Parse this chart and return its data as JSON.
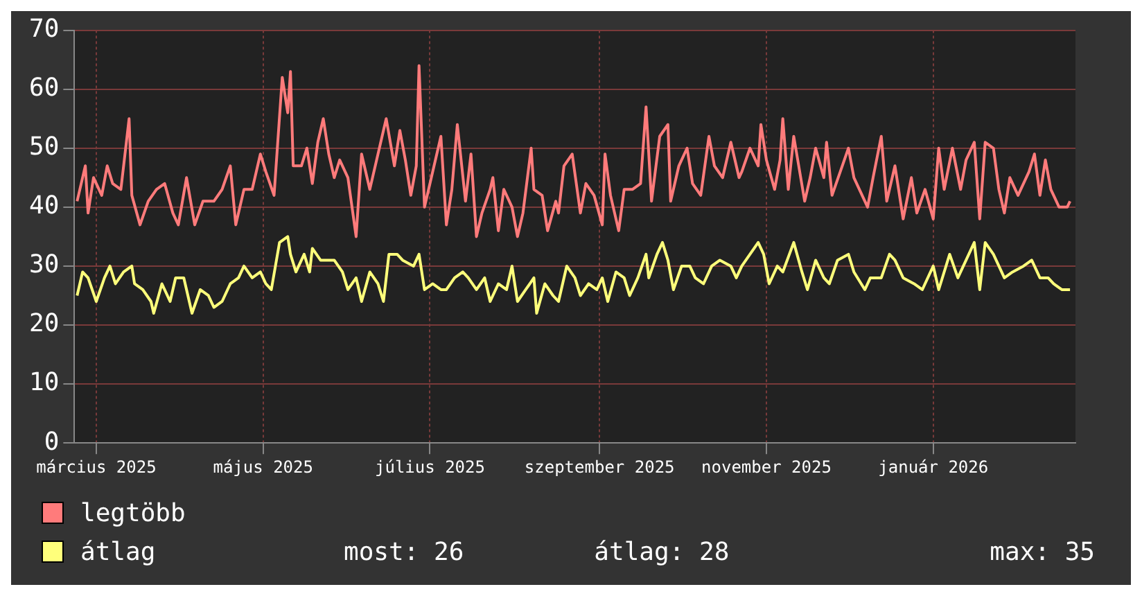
{
  "chart_data": {
    "type": "line",
    "xlim": [
      "2025-02-21",
      "2026-02-22"
    ],
    "xticks": [
      {
        "value": "2025-03-01",
        "label": "március 2025"
      },
      {
        "value": "2025-05-01",
        "label": "május 2025"
      },
      {
        "value": "2025-07-01",
        "label": "július 2025"
      },
      {
        "value": "2025-09-01",
        "label": "szeptember 2025"
      },
      {
        "value": "2025-11-01",
        "label": "november 2025"
      },
      {
        "value": "2026-01-01",
        "label": "január 2026"
      }
    ],
    "ylim": [
      0,
      70
    ],
    "yticks": [
      0,
      10,
      20,
      30,
      40,
      50,
      60,
      70
    ],
    "grid": true,
    "legend": "bottom left",
    "annotations": [
      "most: 26",
      "átlag: 28",
      "max: 35"
    ],
    "series": [
      {
        "name": "legtöbb",
        "color": "#ff7b7b",
        "x": [
          "2025-02-22",
          "2025-02-25",
          "2025-02-26",
          "2025-02-28",
          "2025-03-03",
          "2025-03-05",
          "2025-03-07",
          "2025-03-10",
          "2025-03-13",
          "2025-03-14",
          "2025-03-17",
          "2025-03-20",
          "2025-03-23",
          "2025-03-26",
          "2025-03-29",
          "2025-03-31",
          "2025-04-03",
          "2025-04-06",
          "2025-04-09",
          "2025-04-13",
          "2025-04-16",
          "2025-04-19",
          "2025-04-21",
          "2025-04-24",
          "2025-04-27",
          "2025-04-30",
          "2025-05-02",
          "2025-05-05",
          "2025-05-08",
          "2025-05-10",
          "2025-05-11",
          "2025-05-12",
          "2025-05-15",
          "2025-05-17",
          "2025-05-19",
          "2025-05-21",
          "2025-05-23",
          "2025-05-25",
          "2025-05-27",
          "2025-05-29",
          "2025-06-01",
          "2025-06-04",
          "2025-06-06",
          "2025-06-09",
          "2025-06-13",
          "2025-06-15",
          "2025-06-18",
          "2025-06-20",
          "2025-06-22",
          "2025-06-24",
          "2025-06-26",
          "2025-06-27",
          "2025-06-29",
          "2025-07-02",
          "2025-07-05",
          "2025-07-07",
          "2025-07-09",
          "2025-07-11",
          "2025-07-14",
          "2025-07-16",
          "2025-07-18",
          "2025-07-20",
          "2025-07-23",
          "2025-07-24",
          "2025-07-26",
          "2025-07-28",
          "2025-07-31",
          "2025-08-02",
          "2025-08-04",
          "2025-08-07",
          "2025-08-08",
          "2025-08-11",
          "2025-08-13",
          "2025-08-16",
          "2025-08-17",
          "2025-08-19",
          "2025-08-22",
          "2025-08-25",
          "2025-08-27",
          "2025-08-30",
          "2025-09-02",
          "2025-09-03",
          "2025-09-05",
          "2025-09-08",
          "2025-09-10",
          "2025-09-13",
          "2025-09-16",
          "2025-09-18",
          "2025-09-20",
          "2025-09-23",
          "2025-09-26",
          "2025-09-27",
          "2025-09-30",
          "2025-10-03",
          "2025-10-05",
          "2025-10-08",
          "2025-10-11",
          "2025-10-13",
          "2025-10-16",
          "2025-10-19",
          "2025-10-22",
          "2025-10-23",
          "2025-10-26",
          "2025-10-29",
          "2025-10-30",
          "2025-11-01",
          "2025-11-04",
          "2025-11-06",
          "2025-11-07",
          "2025-11-09",
          "2025-11-11",
          "2025-11-15",
          "2025-11-17",
          "2025-11-19",
          "2025-11-22",
          "2025-11-23",
          "2025-11-25",
          "2025-11-28",
          "2025-12-01",
          "2025-12-03",
          "2025-12-08",
          "2025-12-10",
          "2025-12-13",
          "2025-12-15",
          "2025-12-18",
          "2025-12-21",
          "2025-12-24",
          "2025-12-26",
          "2025-12-29",
          "2026-01-01",
          "2026-01-03",
          "2026-01-05",
          "2026-01-08",
          "2026-01-11",
          "2026-01-13",
          "2026-01-16",
          "2026-01-18",
          "2026-01-20",
          "2026-01-23",
          "2026-01-25",
          "2026-01-27",
          "2026-01-29",
          "2026-02-01",
          "2026-02-05",
          "2026-02-07",
          "2026-02-09",
          "2026-02-11",
          "2026-02-13",
          "2026-02-16",
          "2026-02-19",
          "2026-02-20"
        ],
        "values": [
          41,
          47,
          39,
          45,
          42,
          47,
          44,
          43,
          55,
          42,
          37,
          41,
          43,
          44,
          39,
          37,
          45,
          37,
          41,
          41,
          43,
          47,
          37,
          43,
          43,
          49,
          46,
          42,
          62,
          56,
          63,
          47,
          47,
          50,
          44,
          51,
          55,
          49,
          45,
          48,
          45,
          35,
          49,
          43,
          51,
          55,
          47,
          53,
          48,
          42,
          47,
          64,
          40,
          46,
          52,
          37,
          43,
          54,
          41,
          49,
          35,
          39,
          43,
          45,
          36,
          43,
          40,
          35,
          39,
          50,
          43,
          42,
          36,
          41,
          39,
          47,
          49,
          39,
          44,
          42,
          37,
          49,
          42,
          36,
          43,
          43,
          44,
          57,
          41,
          52,
          54,
          41,
          47,
          50,
          44,
          42,
          52,
          47,
          45,
          51,
          45,
          46,
          50,
          47,
          54,
          48,
          43,
          48,
          55,
          43,
          52,
          41,
          45,
          50,
          45,
          51,
          42,
          46,
          50,
          45,
          40,
          45,
          52,
          41,
          47,
          38,
          45,
          39,
          43,
          38,
          50,
          43,
          50,
          43,
          48,
          51,
          38,
          51,
          50,
          43,
          39,
          45,
          42,
          46,
          49,
          42,
          48,
          43,
          40,
          40,
          41
        ]
      },
      {
        "name": "átlag",
        "color": "#ffff7b",
        "x": [
          "2025-02-22",
          "2025-02-24",
          "2025-02-26",
          "2025-03-01",
          "2025-03-04",
          "2025-03-06",
          "2025-03-08",
          "2025-03-11",
          "2025-03-14",
          "2025-03-15",
          "2025-03-18",
          "2025-03-21",
          "2025-03-22",
          "2025-03-25",
          "2025-03-28",
          "2025-03-30",
          "2025-04-02",
          "2025-04-05",
          "2025-04-08",
          "2025-04-11",
          "2025-04-13",
          "2025-04-16",
          "2025-04-19",
          "2025-04-22",
          "2025-04-24",
          "2025-04-27",
          "2025-04-30",
          "2025-05-02",
          "2025-05-04",
          "2025-05-07",
          "2025-05-10",
          "2025-05-11",
          "2025-05-13",
          "2025-05-16",
          "2025-05-18",
          "2025-05-19",
          "2025-05-22",
          "2025-05-25",
          "2025-05-27",
          "2025-05-30",
          "2025-06-01",
          "2025-06-04",
          "2025-06-06",
          "2025-06-09",
          "2025-06-12",
          "2025-06-14",
          "2025-06-16",
          "2025-06-19",
          "2025-06-21",
          "2025-06-25",
          "2025-06-27",
          "2025-06-29",
          "2025-07-02",
          "2025-07-05",
          "2025-07-07",
          "2025-07-10",
          "2025-07-13",
          "2025-07-15",
          "2025-07-18",
          "2025-07-21",
          "2025-07-23",
          "2025-07-26",
          "2025-07-29",
          "2025-07-31",
          "2025-08-02",
          "2025-08-05",
          "2025-08-08",
          "2025-08-09",
          "2025-08-12",
          "2025-08-15",
          "2025-08-17",
          "2025-08-20",
          "2025-08-23",
          "2025-08-25",
          "2025-08-28",
          "2025-08-31",
          "2025-09-02",
          "2025-09-04",
          "2025-09-07",
          "2025-09-10",
          "2025-09-12",
          "2025-09-15",
          "2025-09-18",
          "2025-09-19",
          "2025-09-22",
          "2025-09-24",
          "2025-09-26",
          "2025-09-28",
          "2025-10-01",
          "2025-10-04",
          "2025-10-06",
          "2025-10-09",
          "2025-10-12",
          "2025-10-15",
          "2025-10-19",
          "2025-10-21",
          "2025-10-23",
          "2025-10-26",
          "2025-10-29",
          "2025-10-31",
          "2025-11-02",
          "2025-11-05",
          "2025-11-07",
          "2025-11-11",
          "2025-11-14",
          "2025-11-16",
          "2025-11-19",
          "2025-11-22",
          "2025-11-24",
          "2025-11-27",
          "2025-12-01",
          "2025-12-03",
          "2025-12-07",
          "2025-12-09",
          "2025-12-13",
          "2025-12-16",
          "2025-12-18",
          "2025-12-21",
          "2025-12-25",
          "2025-12-28",
          "2026-01-01",
          "2026-01-03",
          "2026-01-07",
          "2026-01-10",
          "2026-01-13",
          "2026-01-16",
          "2026-01-18",
          "2026-01-20",
          "2026-01-23",
          "2026-01-27",
          "2026-01-30",
          "2026-02-03",
          "2026-02-06",
          "2026-02-09",
          "2026-02-12",
          "2026-02-14",
          "2026-02-17",
          "2026-02-20"
        ],
        "values": [
          25,
          29,
          28,
          24,
          28,
          30,
          27,
          29,
          30,
          27,
          26,
          24,
          22,
          27,
          24,
          28,
          28,
          22,
          26,
          25,
          23,
          24,
          27,
          28,
          30,
          28,
          29,
          27,
          26,
          34,
          35,
          32,
          29,
          32,
          29,
          33,
          31,
          31,
          31,
          29,
          26,
          28,
          24,
          29,
          27,
          24,
          32,
          32,
          31,
          30,
          32,
          26,
          27,
          26,
          26,
          28,
          29,
          28,
          26,
          28,
          24,
          27,
          26,
          30,
          24,
          26,
          28,
          22,
          27,
          25,
          24,
          30,
          28,
          25,
          27,
          26,
          28,
          24,
          29,
          28,
          25,
          28,
          32,
          28,
          32,
          34,
          31,
          26,
          30,
          30,
          28,
          27,
          30,
          31,
          30,
          28,
          30,
          32,
          34,
          32,
          27,
          30,
          29,
          34,
          29,
          26,
          31,
          28,
          27,
          31,
          32,
          29,
          26,
          28,
          28,
          32,
          31,
          28,
          27,
          26,
          30,
          26,
          32,
          28,
          31,
          34,
          26,
          34,
          32,
          28,
          29,
          30,
          31,
          28,
          28,
          27,
          26,
          26
        ]
      }
    ]
  }
}
